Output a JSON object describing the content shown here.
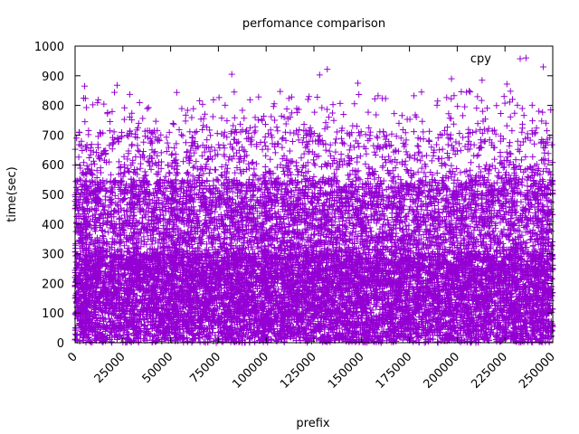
{
  "chart_data": {
    "type": "scatter",
    "title": "perfomance comparison",
    "xlabel": "prefix",
    "ylabel": "time(sec)",
    "xlim": [
      0,
      250000
    ],
    "ylim": [
      0,
      1000
    ],
    "x_ticks": [
      "0",
      "25000",
      "50000",
      "75000",
      "100000",
      "125000",
      "150000",
      "175000",
      "200000",
      "225000",
      "250000"
    ],
    "y_ticks": [
      "0",
      "100",
      "200",
      "300",
      "400",
      "500",
      "600",
      "700",
      "800",
      "900",
      "1000"
    ],
    "legend": {
      "placement": "top-right"
    },
    "series": [
      {
        "name": "cpy",
        "color": "#9400d3",
        "marker": "plus",
        "bands": [
          {
            "y_range": [
              0,
              300
            ],
            "x_range": [
              0,
              250000
            ],
            "density": "very-high"
          },
          {
            "y_range": [
              300,
              550
            ],
            "x_range": [
              0,
              250000
            ],
            "density": "high"
          },
          {
            "y_range": [
              550,
              720
            ],
            "x_range": [
              0,
              250000
            ],
            "density": "medium"
          },
          {
            "y_range": [
              720,
              850
            ],
            "x_range": [
              0,
              250000
            ],
            "density": "low"
          }
        ],
        "outliers": [
          {
            "x": 5000,
            "y": 865
          },
          {
            "x": 22000,
            "y": 868
          },
          {
            "x": 82000,
            "y": 905
          },
          {
            "x": 128000,
            "y": 903
          },
          {
            "x": 132000,
            "y": 922
          },
          {
            "x": 148000,
            "y": 875
          },
          {
            "x": 236000,
            "y": 960
          },
          {
            "x": 245000,
            "y": 930
          },
          {
            "x": 197000,
            "y": 890
          },
          {
            "x": 213000,
            "y": 885
          },
          {
            "x": 226000,
            "y": 872
          }
        ]
      }
    ]
  }
}
